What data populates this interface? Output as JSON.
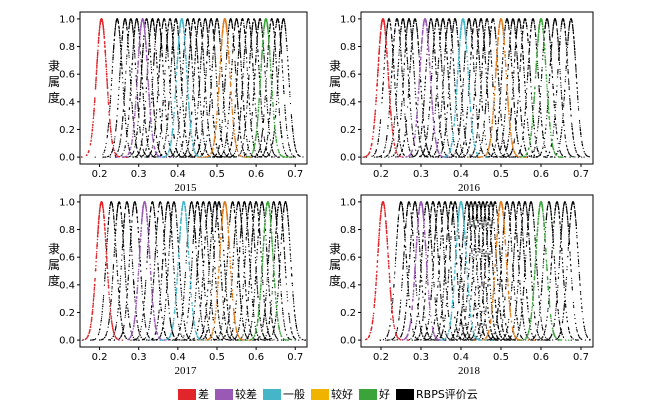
{
  "figure": {
    "legend": [
      {
        "label": "差",
        "color": "#e0262b"
      },
      {
        "label": "较差",
        "color": "#9b59b6"
      },
      {
        "label": "一般",
        "color": "#45b5c8"
      },
      {
        "label": "较好",
        "color": "#f0b400"
      },
      {
        "label": "好",
        "color": "#3aa33a"
      },
      {
        "label": "RBPS评价云",
        "color": "#000000"
      }
    ]
  },
  "chart_data": [
    {
      "type": "scatter",
      "title": "2015",
      "ylabel": "隶属度",
      "xlim": [
        0.15,
        0.73
      ],
      "ylim": [
        -0.05,
        1.05
      ],
      "xticks": [
        "0.2",
        "0.3",
        "0.4",
        "0.5",
        "0.6",
        "0.7"
      ],
      "yticks": [
        "0.0",
        "0.2",
        "0.4",
        "0.6",
        "0.8",
        "1.0"
      ],
      "series": [
        {
          "name": "差",
          "color": "#e0262b",
          "center": 0.205,
          "width": 0.013
        },
        {
          "name": "较差",
          "color": "#9b59b6",
          "center": 0.31,
          "width": 0.013
        },
        {
          "name": "一般",
          "color": "#45b5c8",
          "center": 0.41,
          "width": 0.013
        },
        {
          "name": "较好",
          "color": "#e07b1a",
          "center": 0.52,
          "width": 0.013
        },
        {
          "name": "好",
          "color": "#3aa33a",
          "center": 0.625,
          "width": 0.013
        },
        {
          "name": "RBPS评价云",
          "color": "#000000",
          "centers": [
            0.245,
            0.265,
            0.28,
            0.295,
            0.32,
            0.335,
            0.35,
            0.365,
            0.38,
            0.395,
            0.425,
            0.44,
            0.455,
            0.47,
            0.485,
            0.5,
            0.535,
            0.55,
            0.565,
            0.58,
            0.595,
            0.61,
            0.64,
            0.655,
            0.67
          ]
        }
      ]
    },
    {
      "type": "scatter",
      "title": "2016",
      "ylabel": "隶属度",
      "xlim": [
        0.15,
        0.73
      ],
      "ylim": [
        -0.05,
        1.05
      ],
      "xticks": [
        "0.2",
        "0.3",
        "0.4",
        "0.5",
        "0.6",
        "0.7"
      ],
      "yticks": [
        "0.0",
        "0.2",
        "0.4",
        "0.6",
        "0.8",
        "1.0"
      ],
      "series": [
        {
          "name": "差",
          "color": "#e0262b",
          "center": 0.205,
          "width": 0.013
        },
        {
          "name": "较差",
          "color": "#9b59b6",
          "center": 0.31,
          "width": 0.013
        },
        {
          "name": "一般",
          "color": "#45b5c8",
          "center": 0.405,
          "width": 0.013
        },
        {
          "name": "较好",
          "color": "#e07b1a",
          "center": 0.5,
          "width": 0.013
        },
        {
          "name": "好",
          "color": "#3aa33a",
          "center": 0.6,
          "width": 0.013
        },
        {
          "name": "RBPS评价云",
          "color": "#000000",
          "centers": [
            0.22,
            0.24,
            0.255,
            0.27,
            0.285,
            0.325,
            0.34,
            0.355,
            0.37,
            0.385,
            0.42,
            0.435,
            0.45,
            0.465,
            0.48,
            0.515,
            0.53,
            0.545,
            0.56,
            0.58,
            0.615,
            0.635,
            0.655,
            0.675
          ]
        }
      ]
    },
    {
      "type": "scatter",
      "title": "2017",
      "ylabel": "隶属度",
      "xlim": [
        0.15,
        0.73
      ],
      "ylim": [
        -0.05,
        1.05
      ],
      "xticks": [
        "0.2",
        "0.3",
        "0.4",
        "0.5",
        "0.6",
        "0.7"
      ],
      "yticks": [
        "0.0",
        "0.2",
        "0.4",
        "0.6",
        "0.8",
        "1.0"
      ],
      "series": [
        {
          "name": "差",
          "color": "#e0262b",
          "center": 0.205,
          "width": 0.013
        },
        {
          "name": "较差",
          "color": "#9b59b6",
          "center": 0.315,
          "width": 0.013
        },
        {
          "name": "一般",
          "color": "#45b5c8",
          "center": 0.415,
          "width": 0.013
        },
        {
          "name": "较好",
          "color": "#e07b1a",
          "center": 0.52,
          "width": 0.013
        },
        {
          "name": "好",
          "color": "#3aa33a",
          "center": 0.63,
          "width": 0.013
        },
        {
          "name": "RBPS评价云",
          "color": "#000000",
          "centers": [
            0.23,
            0.25,
            0.27,
            0.29,
            0.335,
            0.355,
            0.375,
            0.39,
            0.435,
            0.45,
            0.465,
            0.48,
            0.495,
            0.505,
            0.54,
            0.555,
            0.57,
            0.585,
            0.6,
            0.615,
            0.645,
            0.66,
            0.675
          ]
        }
      ]
    },
    {
      "type": "scatter",
      "title": "2018",
      "ylabel": "隶属度",
      "xlim": [
        0.15,
        0.73
      ],
      "ylim": [
        -0.05,
        1.05
      ],
      "xticks": [
        "0.2",
        "0.3",
        "0.4",
        "0.5",
        "0.6",
        "0.7"
      ],
      "yticks": [
        "0.0",
        "0.2",
        "0.4",
        "0.6",
        "0.8",
        "1.0"
      ],
      "series": [
        {
          "name": "差",
          "color": "#e0262b",
          "center": 0.205,
          "width": 0.013
        },
        {
          "name": "较差",
          "color": "#9b59b6",
          "center": 0.3,
          "width": 0.013
        },
        {
          "name": "一般",
          "color": "#45b5c8",
          "center": 0.4,
          "width": 0.013
        },
        {
          "name": "较好",
          "color": "#e07b1a",
          "center": 0.5,
          "width": 0.013
        },
        {
          "name": "好",
          "color": "#3aa33a",
          "center": 0.6,
          "width": 0.013
        },
        {
          "name": "RBPS评价云",
          "color": "#000000",
          "centers": [
            0.25,
            0.27,
            0.285,
            0.315,
            0.33,
            0.345,
            0.36,
            0.375,
            0.385,
            0.415,
            0.425,
            0.435,
            0.445,
            0.455,
            0.465,
            0.475,
            0.485,
            0.515,
            0.53,
            0.545,
            0.56,
            0.575,
            0.62,
            0.64,
            0.66,
            0.68
          ]
        }
      ]
    }
  ]
}
